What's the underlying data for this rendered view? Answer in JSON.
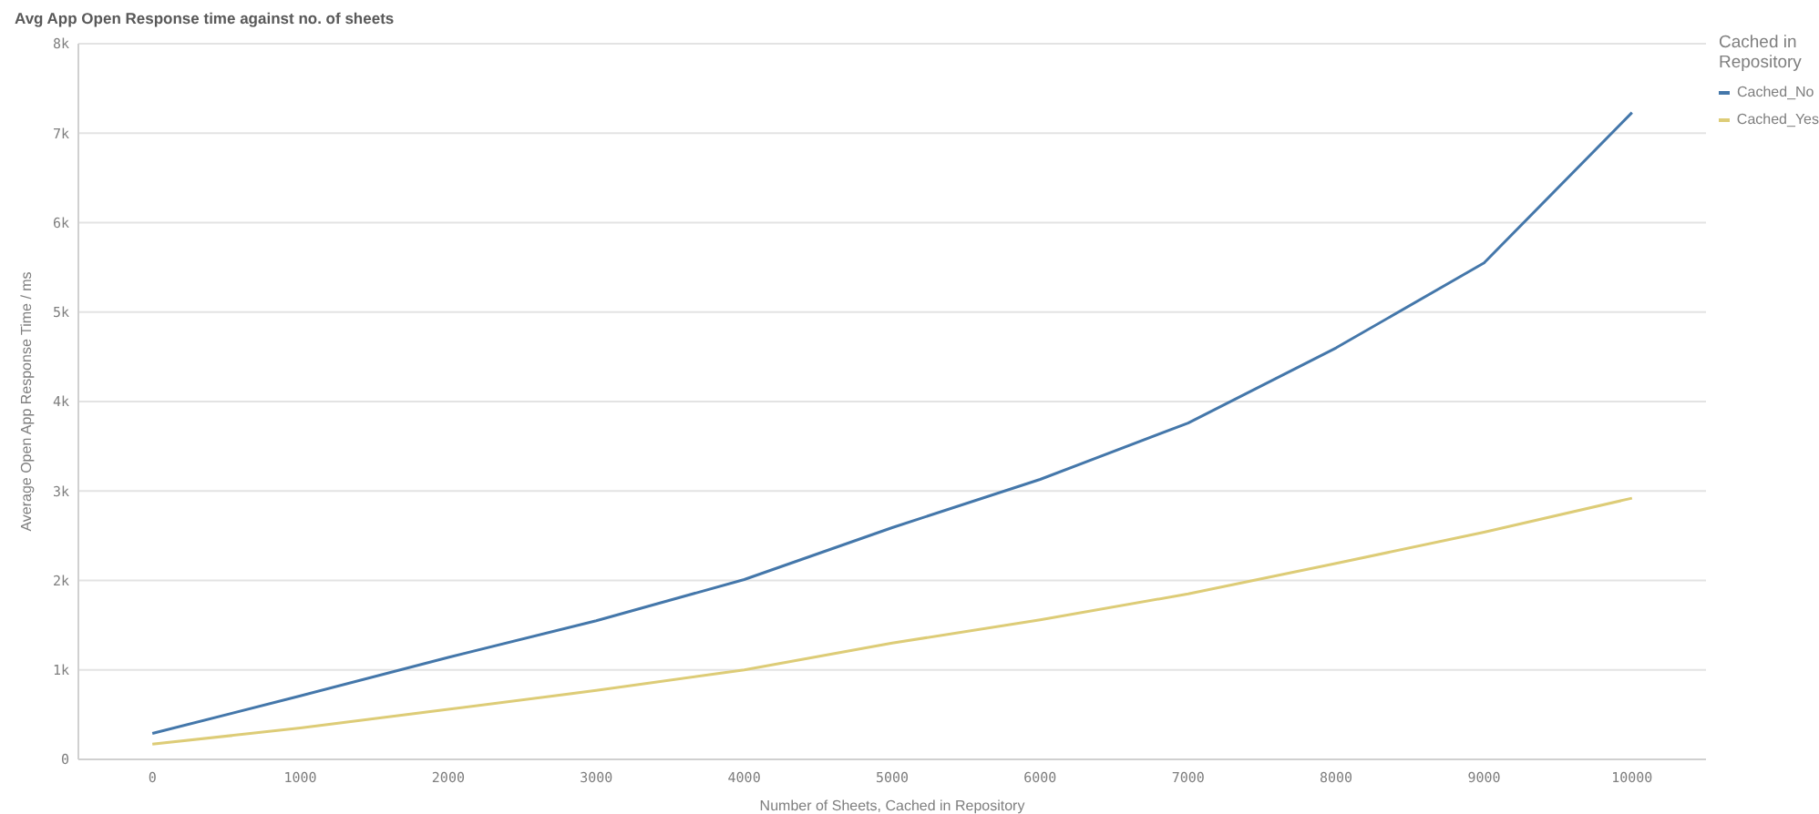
{
  "chart_data": {
    "type": "line",
    "title": "Avg App Open Response time against no. of sheets",
    "xlabel": "Number of Sheets, Cached in Repository",
    "ylabel": "Average Open App Response Time / ms",
    "legend_title": "Cached in Repository",
    "categories": [
      "0",
      "1000",
      "2000",
      "3000",
      "4000",
      "5000",
      "6000",
      "7000",
      "8000",
      "9000",
      "10000"
    ],
    "series": [
      {
        "name": "Cached_No",
        "color": "#4477aa",
        "values": [
          290,
          710,
          1140,
          1550,
          2010,
          2590,
          3130,
          3760,
          4600,
          5550,
          7230
        ]
      },
      {
        "name": "Cached_Yes",
        "color": "#ddcc77",
        "values": [
          170,
          350,
          560,
          770,
          1000,
          1300,
          1560,
          1850,
          2190,
          2540,
          2920
        ]
      }
    ],
    "ylim": [
      0,
      8000
    ],
    "yticks": [
      0,
      {
        "value": 1000,
        "label": "1k"
      },
      {
        "value": 2000,
        "label": "2k"
      },
      {
        "value": 3000,
        "label": "3k"
      },
      {
        "value": 4000,
        "label": "4k"
      },
      {
        "value": 5000,
        "label": "5k"
      },
      {
        "value": 6000,
        "label": "6k"
      },
      {
        "value": 7000,
        "label": "7k"
      },
      {
        "value": 8000,
        "label": "8k"
      }
    ],
    "grid": "y",
    "legend": "top right"
  }
}
